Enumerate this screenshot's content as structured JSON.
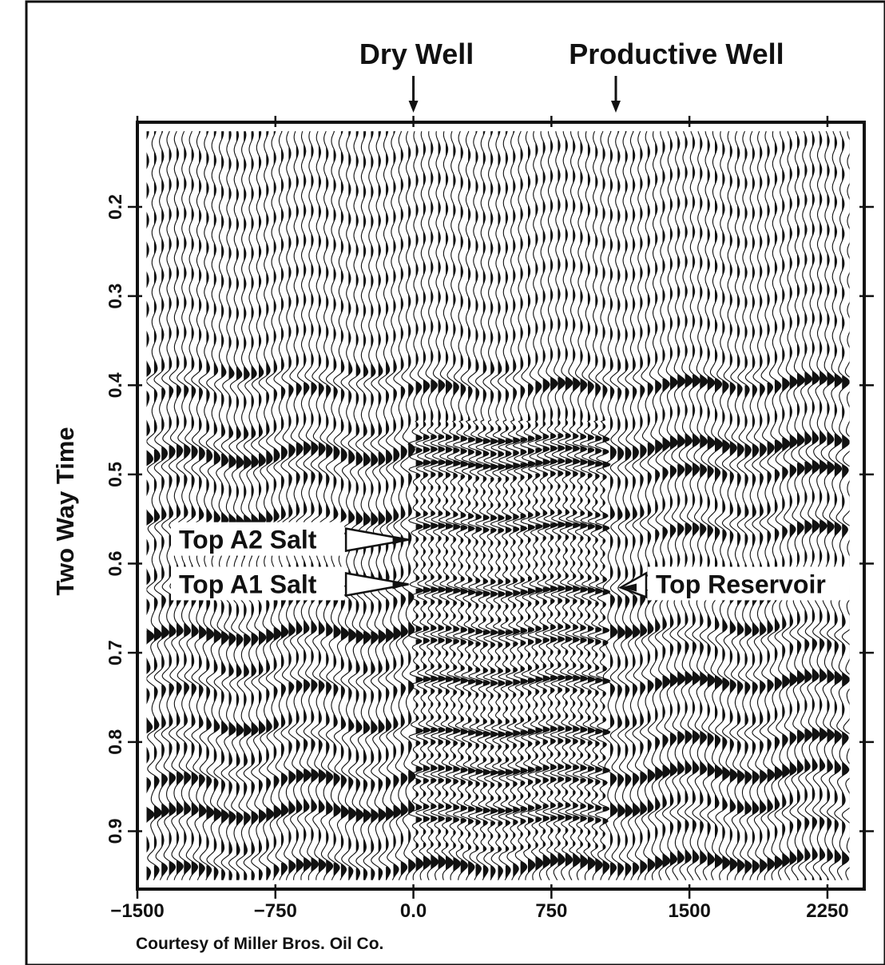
{
  "chart_data": {
    "type": "seismic-section",
    "title": "",
    "xlabel": "",
    "ylabel": "Two Way Time",
    "xlim": [
      -1500,
      2450
    ],
    "ylim": [
      0.965,
      0.105
    ],
    "x_ticks": [
      -1500,
      -750,
      0,
      750,
      1500,
      2250
    ],
    "x_tick_labels": [
      "−1500",
      "−750",
      "0.0",
      "750",
      "1500",
      "2250"
    ],
    "y_ticks": [
      0.2,
      0.3,
      0.4,
      0.5,
      0.6,
      0.7,
      0.8,
      0.9
    ],
    "y_tick_labels": [
      "0.2",
      "0.3",
      "0.4",
      "0.5",
      "0.6",
      "0.7",
      "0.8",
      "0.9"
    ],
    "wells": [
      {
        "label": "Dry Well",
        "x": 0
      },
      {
        "label": "Productive Well",
        "x": 1100
      }
    ],
    "annotations": [
      {
        "label": "Top A2 Salt",
        "x": 0,
        "t": 0.575
      },
      {
        "label": "Top A1 Salt",
        "x": 0,
        "t": 0.625
      },
      {
        "label": "Top Reservoir",
        "x": 1100,
        "t": 0.625
      }
    ],
    "high_frequency_zone": {
      "x_from": 0,
      "x_to": 1050,
      "t_from": 0.44,
      "t_to": 0.925
    },
    "strong_reflectors_t": [
      0.395,
      0.465,
      0.49,
      0.555,
      0.63,
      0.68,
      0.73,
      0.79,
      0.835,
      0.88,
      0.935
    ],
    "grid": false,
    "legend": "none"
  },
  "footer": {
    "credit": "Courtesy of Miller Bros. Oil Co."
  }
}
